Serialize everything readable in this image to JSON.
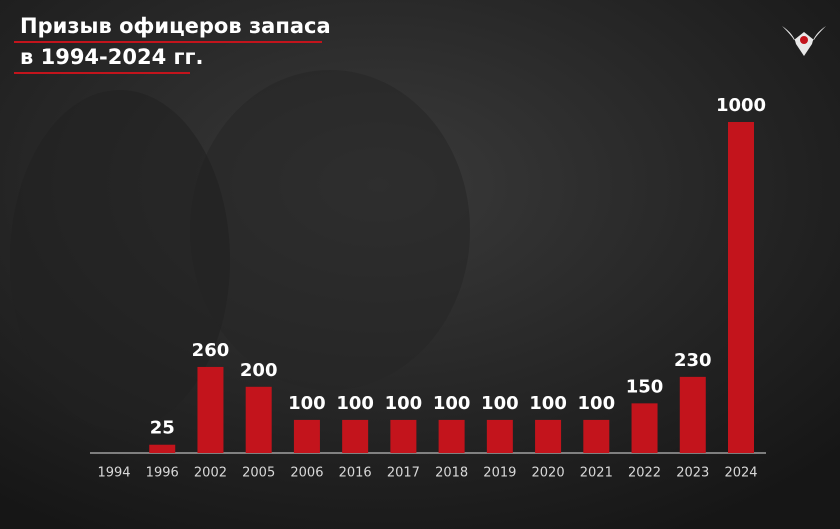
{
  "chart_data": {
    "type": "bar",
    "title": "Призыв офицеров запаса",
    "subtitle": "в 1994-2024 гг.",
    "categories": [
      "1994",
      "1996",
      "2002",
      "2005",
      "2006",
      "2016",
      "2017",
      "2018",
      "2019",
      "2020",
      "2021",
      "2022",
      "2023",
      "2024"
    ],
    "values": [
      null,
      25,
      260,
      200,
      100,
      100,
      100,
      100,
      100,
      100,
      100,
      150,
      230,
      1000
    ],
    "color": "#c3141c"
  }
}
